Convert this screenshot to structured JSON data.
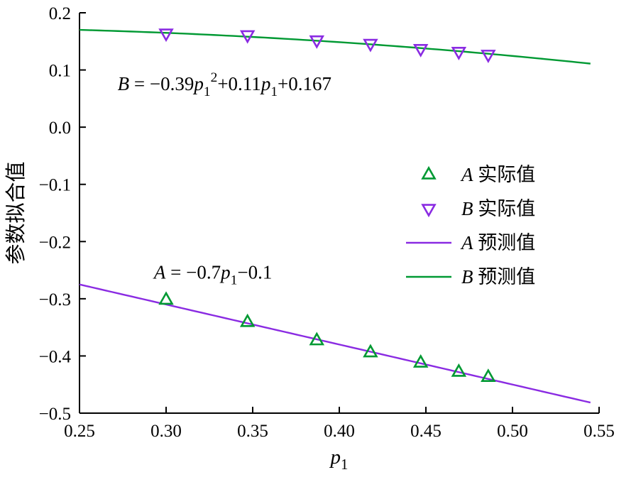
{
  "figure": {
    "background": "#ffffff"
  },
  "chart_data": {
    "type": "scatter+line",
    "title": "",
    "xlabel_segments": [
      {
        "t": "p",
        "i": true
      },
      {
        "t": "1",
        "sub": true
      }
    ],
    "ylabel": "参数拟合值",
    "xlim": [
      0.25,
      0.55
    ],
    "ylim": [
      -0.5,
      0.2
    ],
    "xticks": [
      0.25,
      0.3,
      0.35,
      0.4,
      0.45,
      0.5,
      0.55
    ],
    "xtick_labels": [
      "0.25",
      "0.30",
      "0.35",
      "0.40",
      "0.45",
      "0.50",
      "0.55"
    ],
    "yticks": [
      -0.5,
      -0.4,
      -0.3,
      -0.2,
      -0.1,
      0.0,
      0.1,
      0.2
    ],
    "ytick_labels": [
      "−0.5",
      "−0.4",
      "−0.3",
      "−0.2",
      "−0.1",
      "0.0",
      "0.1",
      "0.2"
    ],
    "grid": false,
    "legend_position": "center-right",
    "colors": {
      "green": "#009933",
      "purple": "#8a2be2",
      "axis": "#000000"
    },
    "series": [
      {
        "id": "A-actual",
        "name": "A 实际值",
        "type": "scatter",
        "marker": "triangle-up",
        "color": "#009933",
        "x": [
          0.3,
          0.347,
          0.387,
          0.418,
          0.447,
          0.469,
          0.486
        ],
        "y": [
          -0.302,
          -0.341,
          -0.373,
          -0.394,
          -0.412,
          -0.428,
          -0.437
        ]
      },
      {
        "id": "B-actual",
        "name": "B 实际值",
        "type": "scatter",
        "marker": "triangle-down",
        "color": "#8a2be2",
        "x": [
          0.3,
          0.347,
          0.387,
          0.418,
          0.447,
          0.469,
          0.486
        ],
        "y": [
          0.164,
          0.161,
          0.152,
          0.146,
          0.137,
          0.132,
          0.127
        ]
      },
      {
        "id": "A-pred",
        "name": "A 预测值",
        "type": "line",
        "color": "#8a2be2",
        "coeffs": [
          -0.7,
          -0.1
        ],
        "xrange": [
          0.25,
          0.545
        ],
        "equation": "A = −0.7p1−0.1"
      },
      {
        "id": "B-pred",
        "name": "B 预测值",
        "type": "line",
        "color": "#009933",
        "coeffs": [
          -0.39,
          0.11,
          0.167
        ],
        "xrange": [
          0.25,
          0.545
        ],
        "equation": "B = −0.39p1²+0.11p1+0.167"
      }
    ],
    "legend": {
      "items": [
        {
          "swatch": "marker",
          "marker": "triangle-up",
          "color": "#009933",
          "var": "A",
          "label": "实际值"
        },
        {
          "swatch": "marker",
          "marker": "triangle-down",
          "color": "#8a2be2",
          "var": "B",
          "label": "实际值"
        },
        {
          "swatch": "line",
          "color": "#8a2be2",
          "var": "A",
          "label": "预测值"
        },
        {
          "swatch": "line",
          "color": "#009933",
          "var": "B",
          "label": "预测值"
        }
      ]
    },
    "annotations": [
      {
        "x": 0.272,
        "y": 0.065,
        "segments": [
          {
            "t": "B",
            "i": true
          },
          {
            "t": " = −0.39"
          },
          {
            "t": "p",
            "i": true
          },
          {
            "t": "1",
            "sub": true
          },
          {
            "t": "2",
            "sup": true
          },
          {
            "t": "+0.11"
          },
          {
            "t": "p",
            "i": true
          },
          {
            "t": "1",
            "sub": true
          },
          {
            "t": "+0.167"
          }
        ]
      },
      {
        "x": 0.293,
        "y": -0.265,
        "segments": [
          {
            "t": "A",
            "i": true
          },
          {
            "t": " = −0.7"
          },
          {
            "t": "p",
            "i": true
          },
          {
            "t": "1",
            "sub": true
          },
          {
            "t": "−0.1"
          }
        ]
      }
    ]
  }
}
